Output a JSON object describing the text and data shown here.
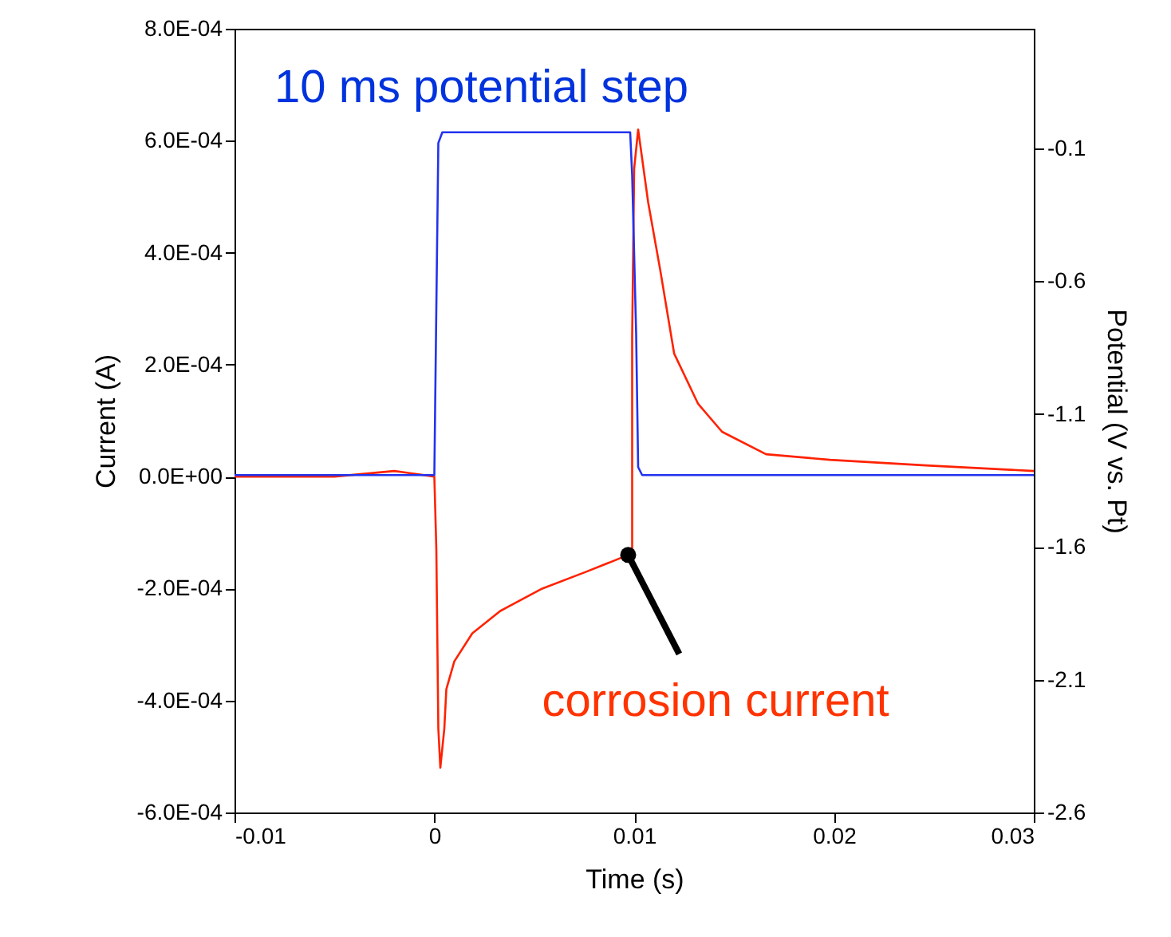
{
  "chart_data": {
    "type": "line",
    "xlabel": "Time (s)",
    "ylabel": "Current (A)",
    "y2label": "Potential (V vs. Pt)",
    "xlim": [
      -0.01,
      0.03
    ],
    "xticks": [
      -0.01,
      0,
      0.01,
      0.02,
      0.03
    ],
    "ylim": [
      -0.0006,
      0.0008
    ],
    "yticks": [
      {
        "value": -0.0006,
        "label": "-6.0E-04"
      },
      {
        "value": -0.0004,
        "label": "-4.0E-04"
      },
      {
        "value": -0.0002,
        "label": "-2.0E-04"
      },
      {
        "value": 0,
        "label": "0.0E+00"
      },
      {
        "value": 0.0002,
        "label": "2.0E-04"
      },
      {
        "value": 0.0004,
        "label": "4.0E-04"
      },
      {
        "value": 0.0006,
        "label": "6.0E-04"
      },
      {
        "value": 0.0008,
        "label": "8.0E-04"
      }
    ],
    "y2lim": [
      -2.6,
      0.35
    ],
    "y2ticks": [
      -2.6,
      -2.1,
      -1.6,
      -1.1,
      -0.6,
      -0.1
    ],
    "grid": false,
    "marker": "none",
    "line_style": "solid",
    "annotations": [
      "10 ms potential step",
      {
        "text": "corrosion current",
        "x": 0.0097,
        "y": -0.00014
      }
    ],
    "series": [
      {
        "color": "#ff2200",
        "x": [
          -0.01,
          -0.005,
          -0.002,
          0,
          0.0001,
          0.0002,
          0.0003,
          0.0005,
          0.0006,
          0.001,
          0.0019,
          0.0033,
          0.0054,
          0.0076,
          0.0097,
          0.0099,
          0.0099,
          0.01,
          0.0102,
          0.0107,
          0.0113,
          0.012,
          0.0132,
          0.0144,
          0.0166,
          0.0198,
          0.0246,
          0.03
        ],
        "values": [
          0,
          0,
          1e-05,
          0,
          -0.00013,
          -0.00045,
          -0.00052,
          -0.00045,
          -0.00038,
          -0.00033,
          -0.00028,
          -0.00024,
          -0.0002,
          -0.00017,
          -0.00014,
          -0.00013,
          0.00025,
          0.00055,
          0.00062,
          0.00049,
          0.00037,
          0.00022,
          0.00013,
          8e-05,
          4e-05,
          3e-05,
          2e-05,
          1e-05
        ]
      },
      {
        "color": "#2233ee",
        "axis": "y2",
        "x": [
          -0.01,
          0,
          0.0001,
          0.0002,
          0.0004,
          0.0098,
          0.0099,
          0.0101,
          0.0102,
          0.0104,
          0.03
        ],
        "values": [
          -1.33,
          -1.33,
          -0.7,
          -0.08,
          -0.04,
          -0.04,
          -0.2,
          -0.8,
          -1.3,
          -1.33,
          -1.33
        ]
      }
    ]
  }
}
